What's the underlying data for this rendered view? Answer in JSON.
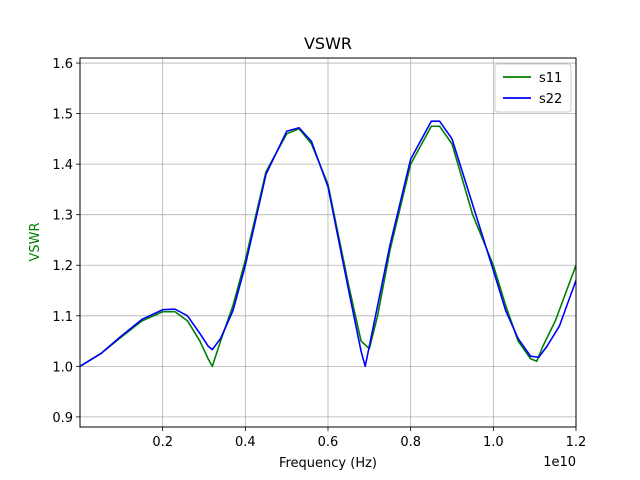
{
  "chart_data": {
    "type": "line",
    "title": "VSWR",
    "xlabel": "Frequency (Hz)",
    "ylabel": "VSWR",
    "ylabel_color": "#008000",
    "x_offset_text": "1e10",
    "xlim": [
      0.0,
      1.2
    ],
    "ylim": [
      0.88,
      1.61
    ],
    "x_ticks": [
      0.2,
      0.4,
      0.6,
      0.8,
      1.0,
      1.2
    ],
    "x_tick_labels": [
      "0.2",
      "0.4",
      "0.6",
      "0.8",
      "1.0",
      "1.2"
    ],
    "y_ticks": [
      0.9,
      1.0,
      1.1,
      1.2,
      1.3,
      1.4,
      1.5,
      1.6
    ],
    "y_tick_labels": [
      "0.9",
      "1.0",
      "1.1",
      "1.2",
      "1.3",
      "1.4",
      "1.5",
      "1.6"
    ],
    "grid": true,
    "legend_position": "top-right",
    "series": [
      {
        "name": "s11",
        "color": "#008000",
        "x": [
          0.0,
          0.05,
          0.1,
          0.15,
          0.2,
          0.23,
          0.26,
          0.29,
          0.31,
          0.32,
          0.34,
          0.37,
          0.4,
          0.45,
          0.5,
          0.53,
          0.56,
          0.6,
          0.65,
          0.68,
          0.7,
          0.72,
          0.75,
          0.8,
          0.85,
          0.87,
          0.9,
          0.95,
          1.0,
          1.03,
          1.06,
          1.09,
          1.105,
          1.12,
          1.15,
          1.2
        ],
        "y": [
          1.0,
          1.025,
          1.058,
          1.09,
          1.108,
          1.108,
          1.09,
          1.05,
          1.015,
          1.0,
          1.05,
          1.12,
          1.21,
          1.385,
          1.46,
          1.47,
          1.44,
          1.36,
          1.16,
          1.05,
          1.035,
          1.1,
          1.23,
          1.4,
          1.475,
          1.475,
          1.44,
          1.3,
          1.2,
          1.12,
          1.05,
          1.015,
          1.01,
          1.04,
          1.09,
          1.2
        ]
      },
      {
        "name": "s22",
        "color": "#0000ff",
        "x": [
          0.0,
          0.05,
          0.1,
          0.15,
          0.2,
          0.23,
          0.26,
          0.29,
          0.31,
          0.32,
          0.34,
          0.37,
          0.4,
          0.45,
          0.5,
          0.53,
          0.56,
          0.6,
          0.65,
          0.68,
          0.69,
          0.7,
          0.72,
          0.75,
          0.8,
          0.85,
          0.87,
          0.9,
          0.95,
          1.0,
          1.03,
          1.06,
          1.09,
          1.11,
          1.13,
          1.16,
          1.2
        ],
        "y": [
          1.0,
          1.025,
          1.06,
          1.093,
          1.112,
          1.113,
          1.1,
          1.065,
          1.04,
          1.033,
          1.055,
          1.11,
          1.2,
          1.38,
          1.465,
          1.472,
          1.445,
          1.355,
          1.15,
          1.03,
          1.0,
          1.04,
          1.12,
          1.24,
          1.41,
          1.485,
          1.485,
          1.45,
          1.32,
          1.19,
          1.11,
          1.055,
          1.02,
          1.018,
          1.04,
          1.08,
          1.17
        ]
      }
    ]
  }
}
